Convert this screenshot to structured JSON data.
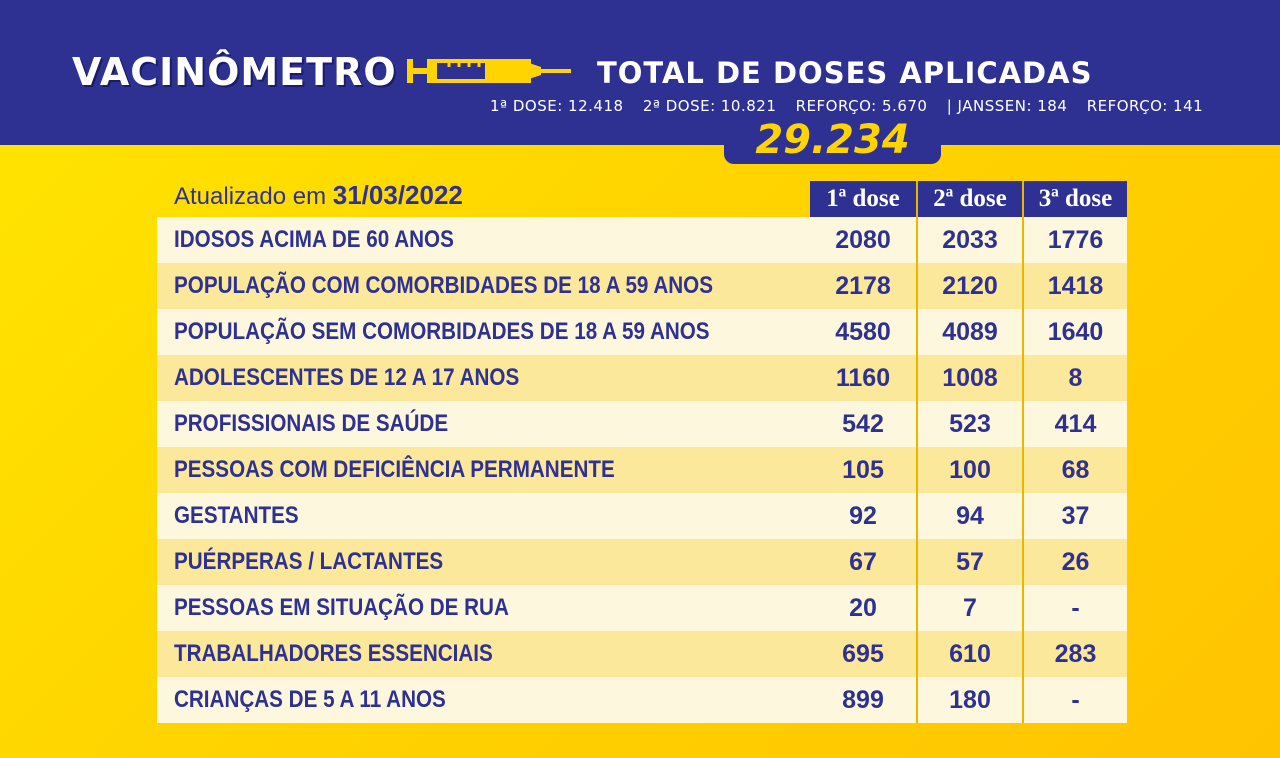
{
  "header": {
    "logo": "VACINÔMETRO",
    "title": "TOTAL DE DOSES APLICADAS",
    "dose_summary": [
      "1ª DOSE: 12.418",
      "2ª DOSE: 10.821",
      "REFORÇO: 5.670",
      "| JANSSEN: 184",
      "REFORÇO: 141"
    ],
    "total": "29.234"
  },
  "table": {
    "updated_prefix": "Atualizado em",
    "updated_date": "31/03/2022",
    "columns": [
      "1ª dose",
      "2ª dose",
      "3ª dose"
    ],
    "rows": [
      {
        "label": "IDOSOS ACIMA DE 60 ANOS",
        "d1": "2080",
        "d2": "2033",
        "d3": "1776"
      },
      {
        "label": "POPULAÇÃO COM COMORBIDADES DE 18 A 59 ANOS",
        "d1": "2178",
        "d2": "2120",
        "d3": "1418"
      },
      {
        "label": "POPULAÇÃO SEM COMORBIDADES DE 18 A 59 ANOS",
        "d1": "4580",
        "d2": "4089",
        "d3": "1640"
      },
      {
        "label": "ADOLESCENTES DE 12 A 17 ANOS",
        "d1": "1160",
        "d2": "1008",
        "d3": "8"
      },
      {
        "label": "PROFISSIONAIS DE SAÚDE",
        "d1": "542",
        "d2": "523",
        "d3": "414"
      },
      {
        "label": "PESSOAS COM DEFICIÊNCIA PERMANENTE",
        "d1": "105",
        "d2": "100",
        "d3": "68"
      },
      {
        "label": "GESTANTES",
        "d1": "92",
        "d2": "94",
        "d3": "37"
      },
      {
        "label": "PUÉRPERAS / LACTANTES",
        "d1": "67",
        "d2": "57",
        "d3": "26"
      },
      {
        "label": "PESSOAS EM SITUAÇÃO DE RUA",
        "d1": "20",
        "d2": "7",
        "d3": "-"
      },
      {
        "label": "TRABALHADORES ESSENCIAIS",
        "d1": "695",
        "d2": "610",
        "d3": "283"
      },
      {
        "label": "CRIANÇAS DE 5 A 11 ANOS",
        "d1": "899",
        "d2": "180",
        "d3": "-"
      }
    ]
  },
  "colors": {
    "navy": "#2e3191",
    "yellow": "#ffd400",
    "row_light": "#fdf8dd",
    "row_dark": "#fbe89a"
  }
}
